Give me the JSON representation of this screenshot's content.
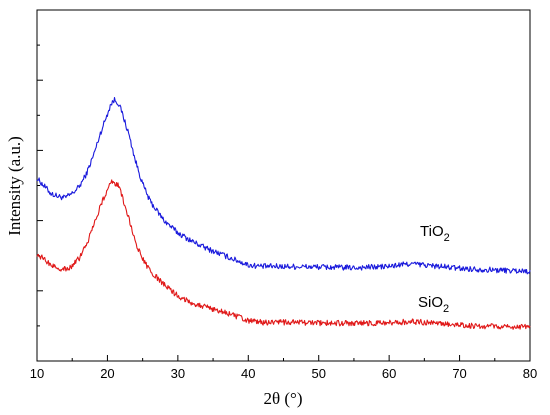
{
  "chart_data": {
    "type": "line",
    "xlabel": "2θ (°)",
    "ylabel": "Intensity (a.u.)",
    "xlim": [
      10,
      80
    ],
    "ylim": [
      0,
      1
    ],
    "x_ticks": [
      "10",
      "20",
      "30",
      "40",
      "50",
      "60",
      "70",
      "80"
    ],
    "y_tick_labels_shown": false,
    "grid": false,
    "legend": "none",
    "series": [
      {
        "name": "TiO2",
        "label_base": "TiO",
        "label_sub": "2",
        "color": "#1a1adc",
        "x": [
          10,
          12,
          13,
          14,
          15,
          16,
          17,
          18,
          19,
          20,
          20.5,
          21,
          21.5,
          22,
          23,
          24,
          25,
          26,
          28,
          30,
          32,
          34,
          36,
          38,
          40,
          42,
          45,
          50,
          55,
          60,
          63,
          65,
          70,
          75,
          80
        ],
        "y": [
          0.56,
          0.505,
          0.495,
          0.49,
          0.505,
          0.53,
          0.575,
          0.64,
          0.72,
          0.79,
          0.825,
          0.84,
          0.83,
          0.8,
          0.72,
          0.62,
          0.54,
          0.48,
          0.41,
          0.365,
          0.335,
          0.31,
          0.29,
          0.27,
          0.25,
          0.245,
          0.245,
          0.243,
          0.24,
          0.245,
          0.255,
          0.25,
          0.238,
          0.232,
          0.228
        ]
      },
      {
        "name": "SiO2",
        "label_base": "SiO",
        "label_sub": "2",
        "color": "#e01818",
        "x": [
          10,
          12,
          13,
          14,
          15,
          16,
          17,
          18,
          19,
          20,
          20.5,
          21,
          21.5,
          22,
          23,
          24,
          25,
          26,
          28,
          30,
          32,
          34,
          36,
          38,
          40,
          42,
          45,
          50,
          55,
          60,
          63,
          65,
          70,
          75,
          80
        ],
        "y": [
          0.29,
          0.25,
          0.24,
          0.235,
          0.245,
          0.275,
          0.32,
          0.39,
          0.46,
          0.52,
          0.545,
          0.545,
          0.535,
          0.5,
          0.42,
          0.33,
          0.27,
          0.23,
          0.18,
          0.14,
          0.115,
          0.1,
          0.085,
          0.07,
          0.05,
          0.045,
          0.045,
          0.043,
          0.042,
          0.043,
          0.048,
          0.045,
          0.035,
          0.03,
          0.028
        ]
      }
    ]
  }
}
